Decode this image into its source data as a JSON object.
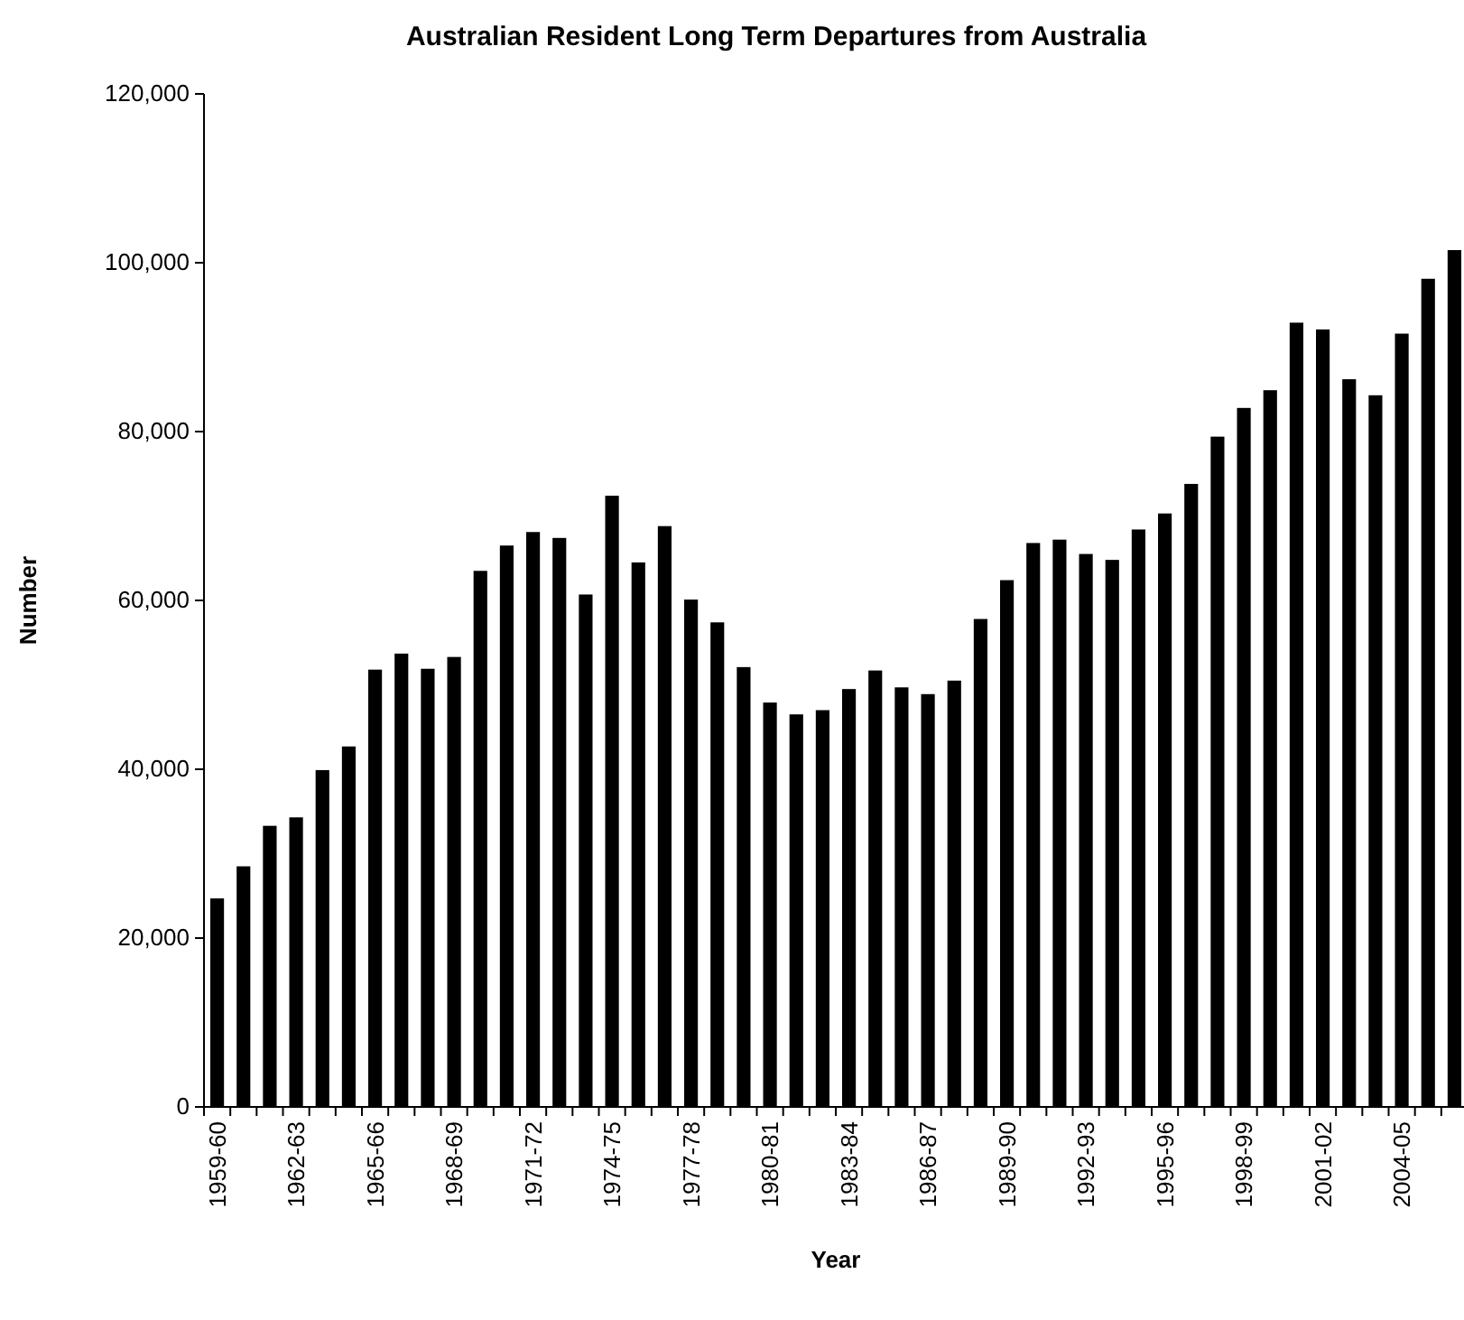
{
  "chart_data": {
    "type": "bar",
    "title": "Australian Resident Long Term Departures from Australia",
    "xlabel": "Year",
    "ylabel": "Number",
    "categories": [
      "1959-60",
      null,
      null,
      "1962-63",
      null,
      null,
      "1965-66",
      null,
      null,
      "1968-69",
      null,
      null,
      "1971-72",
      null,
      null,
      "1974-75",
      null,
      null,
      "1977-78",
      null,
      null,
      "1980-81",
      null,
      null,
      "1983-84",
      null,
      null,
      "1986-87",
      null,
      null,
      "1989-90",
      null,
      null,
      "1992-93",
      null,
      null,
      "1995-96",
      null,
      null,
      "1998-99",
      null,
      null,
      "2001-02",
      null,
      null,
      "2004-05",
      null,
      null
    ],
    "values": [
      24700,
      28500,
      33300,
      34300,
      39900,
      42700,
      51800,
      53700,
      51900,
      53300,
      63500,
      66500,
      68100,
      67400,
      60700,
      72400,
      64500,
      68800,
      60100,
      57400,
      52100,
      47900,
      46500,
      47000,
      49500,
      51700,
      49700,
      48900,
      50500,
      57800,
      62400,
      66800,
      67200,
      65500,
      64800,
      68400,
      70300,
      73800,
      79400,
      82800,
      84900,
      92900,
      92100,
      86200,
      84300,
      91600,
      98100,
      101500
    ],
    "color": "#000000",
    "ylim": [
      0,
      120000
    ],
    "yticks": [
      {
        "value": 0,
        "label": "0"
      },
      {
        "value": 20000,
        "label": "20,000"
      },
      {
        "value": 40000,
        "label": "40,000"
      },
      {
        "value": 60000,
        "label": "60,000"
      },
      {
        "value": 80000,
        "label": "80,000"
      },
      {
        "value": 100000,
        "label": "100,000"
      },
      {
        "value": 120000,
        "label": "120,000"
      }
    ],
    "grid": false
  }
}
